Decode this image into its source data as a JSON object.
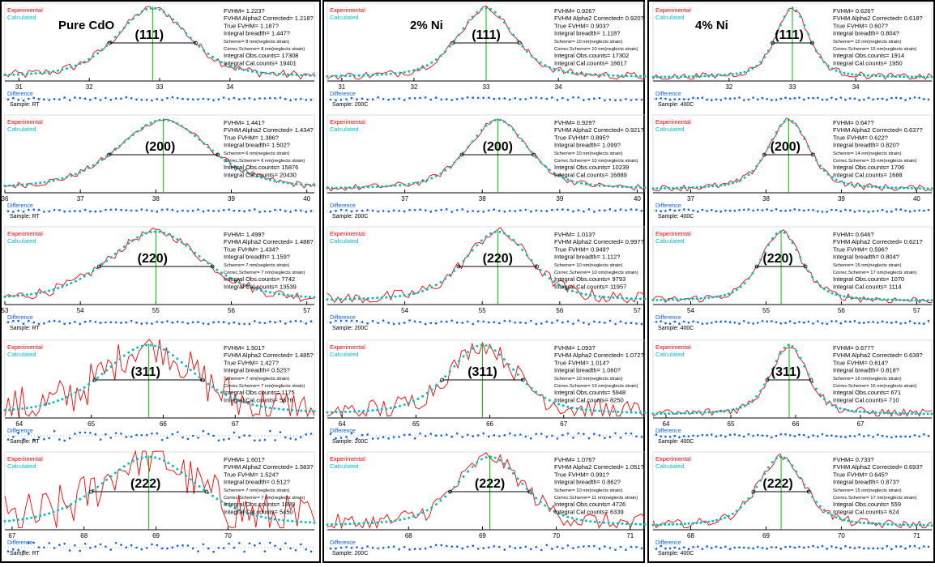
{
  "colors": {
    "experimental": "#ff0000",
    "calculated": "#00c0c0",
    "difference": "#1060e0",
    "peak_line": "#00c000",
    "fwhm_line": "#000000",
    "section_border": "#000000"
  },
  "legend": {
    "experimental": "Experimental",
    "calculated": "Calculated",
    "difference": "Difference"
  },
  "columns": [
    {
      "title": "Pure CdO",
      "sample_label": "Sample: RT"
    },
    {
      "title": "2% Ni",
      "sample_label": "Sample: 200C"
    },
    {
      "title": "4% Ni",
      "sample_label": "Sample: 400C"
    }
  ],
  "chart_data": [
    {
      "type": "line",
      "col": 0,
      "row": 0,
      "hkl": "(111)",
      "xlim": [
        30.8,
        35.2
      ],
      "xticks": [
        31,
        32,
        33,
        34
      ],
      "peak": 32.9,
      "fwhm": 1.223,
      "noise": 0.07,
      "info": [
        "FVHM= 1.223?",
        "FVHM Alpha2 Corrected= 1.218?",
        "True FVHM= 1.187?",
        "Integral breadth= 1.447?",
        "Scherrer= 8 nm(neglects strain)",
        "Correc.Scherrer= 8 nm(neglects strain)",
        "Integral Obs.counts= 17308",
        "Integral Cal.counts= 19401"
      ]
    },
    {
      "type": "line",
      "col": 0,
      "row": 1,
      "hkl": "(200)",
      "xlim": [
        36,
        40.1
      ],
      "xticks": [
        36,
        37,
        38,
        39,
        40
      ],
      "peak": 38.1,
      "fwhm": 1.441,
      "noise": 0.05,
      "info": [
        "FVHM= 1.441?",
        "FVHM Alpha2 Corrected= 1.434?",
        "True FVHM= 1.386?",
        "Integral breadth= 1.502?",
        "Scherrer= 6 nm(neglects strain)",
        "Correc.Scherrer= 6 nm(neglects strain)",
        "Integral Obs.counts= 15876",
        "Integral Cal.counts= 20430"
      ]
    },
    {
      "type": "line",
      "col": 0,
      "row": 2,
      "hkl": "(220)",
      "xlim": [
        53,
        57.1
      ],
      "xticks": [
        53,
        54,
        55,
        56,
        57
      ],
      "peak": 55.0,
      "fwhm": 1.499,
      "noise": 0.08,
      "info": [
        "FVHM= 1.499?",
        "FVHM Alpha2 Corrected= 1.488?",
        "True FVHM= 1.434?",
        "Integral breadth= 1.159?",
        "Scherrer= 7 nm(neglects strain)",
        "Correc.Scherrer= 7 nm(neglects strain)",
        "Integral Obs.counts= 7742",
        "Integral Cal.counts= 13539"
      ]
    },
    {
      "type": "line",
      "col": 0,
      "row": 3,
      "hkl": "(311)",
      "xlim": [
        63.8,
        68.1
      ],
      "xticks": [
        64,
        65,
        66,
        67
      ],
      "peak": 65.8,
      "fwhm": 1.501,
      "noise": 0.35,
      "info": [
        "FVHM= 1.501?",
        "FVHM Alpha2 Corrected= 1.485?",
        "True FVHM= 1.427?",
        "Integral breadth= 0.525?",
        "Scherrer= 7 nm(neglects strain)",
        "Correc.Scherrer= 7 nm(neglects strain)",
        "Integral Obs.counts= 1175",
        "Integral Cal.counts= 5676"
      ]
    },
    {
      "type": "line",
      "col": 0,
      "row": 4,
      "hkl": "(222)",
      "xlim": [
        66.9,
        71.2
      ],
      "xticks": [
        67,
        68,
        69,
        70
      ],
      "peak": 68.9,
      "fwhm": 1.601,
      "noise": 0.4,
      "info": [
        "FVHM= 1.601?",
        "FVHM Alpha2 Corrected= 1.583?",
        "True FVHM= 1.524?",
        "Integral breadth= 0.512?",
        "Scherrer= 7 nm(neglects strain)",
        "Correc.Scherrer= 7 nm(neglects strain)",
        "Integral Obs.counts= 1889",
        "Integral Cal.counts= 5450"
      ]
    },
    {
      "type": "line",
      "col": 1,
      "row": 0,
      "hkl": "(111)",
      "xlim": [
        30.8,
        35.2
      ],
      "xticks": [
        31,
        32,
        33,
        34
      ],
      "peak": 33.0,
      "fwhm": 0.926,
      "noise": 0.06,
      "info": [
        "FVHM= 0.926?",
        "FVHM Alpha2 Corrected= 0.920?",
        "True FVHM= 0.903?",
        "Integral breadth= 1.118?",
        "Scherrer= 10 nm(neglects strain)",
        "Correc.Scherrer= 10 nm(neglects strain)",
        "Integral Obs.counts= 17302",
        "Integral Cal.counts= 18617"
      ]
    },
    {
      "type": "line",
      "col": 1,
      "row": 1,
      "hkl": "(200)",
      "xlim": [
        36,
        40.1
      ],
      "xticks": [
        37,
        38,
        39,
        40
      ],
      "peak": 38.2,
      "fwhm": 0.929,
      "noise": 0.05,
      "info": [
        "FVHM= 0.929?",
        "FVHM Alpha2 Corrected= 0.921?",
        "True FVHM= 0.895?",
        "Integral breadth= 1.099?",
        "Scherrer= 10 nm(neglects strain)",
        "Correc.Scherrer= 10 nm(neglects strain)",
        "Integral Obs.counts= 10239",
        "Integral Cal.counts= 16889"
      ]
    },
    {
      "type": "line",
      "col": 1,
      "row": 2,
      "hkl": "(220)",
      "xlim": [
        53,
        57.1
      ],
      "xticks": [
        54,
        55,
        56,
        57
      ],
      "peak": 55.2,
      "fwhm": 1.013,
      "noise": 0.1,
      "info": [
        "FVHM= 1.013?",
        "FVHM Alpha2 Corrected= 0.997?",
        "True FVHM= 0.949?",
        "Integral breadth= 1.112?",
        "Scherrer= 10 nm(neglects strain)",
        "Correc.Scherrer= 10 nm(neglects strain)",
        "Integral Obs.counts= 9793",
        "Integral Cal.counts= 11957"
      ]
    },
    {
      "type": "line",
      "col": 1,
      "row": 3,
      "hkl": "(311)",
      "xlim": [
        63.8,
        68.1
      ],
      "xticks": [
        64,
        65,
        66,
        67
      ],
      "peak": 65.9,
      "fwhm": 1.093,
      "noise": 0.18,
      "info": [
        "FVHM= 1.093?",
        "FVHM Alpha2 Corrected= 1.072?",
        "True FVHM= 1.014?",
        "Integral breadth= 1.060?",
        "Scherrer= 10 nm(neglects strain)",
        "Correc.Scherrer= 10 nm(neglects strain)",
        "Integral Obs.counts= 5948",
        "Integral Cal.counts= 8250"
      ]
    },
    {
      "type": "line",
      "col": 1,
      "row": 4,
      "hkl": "(222)",
      "xlim": [
        66.9,
        71.2
      ],
      "xticks": [
        68,
        69,
        70,
        71
      ],
      "peak": 69.1,
      "fwhm": 1.076,
      "noise": 0.15,
      "info": [
        "FVHM= 1.076?",
        "FVHM Alpha2 Corrected= 1.051?",
        "True FVHM= 0.991?",
        "Integral breadth= 0.862?",
        "Scherrer= 10 nm(neglects strain)",
        "Correc.Scherrer= 11 nm(neglects strain)",
        "Integral Obs.counts= 4726",
        "Integral Cal.counts= 6339"
      ]
    },
    {
      "type": "line",
      "col": 2,
      "row": 0,
      "hkl": "(111)",
      "xlim": [
        30.8,
        35.2
      ],
      "xticks": [
        32,
        33,
        34
      ],
      "peak": 33.0,
      "fwhm": 0.626,
      "noise": 0.05,
      "info": [
        "FVHM= 0.626?",
        "FVHM Alpha2 Corrected= 0.618?",
        "True FVHM= 0.607?",
        "Integral breadth= 0.804?",
        "Scherrer= 15 nm(neglects strain)",
        "Correc.Scherrer= 15 nm(neglects strain)",
        "Integral Obs.counts= 1914",
        "Integral Cal.counts= 1950"
      ]
    },
    {
      "type": "line",
      "col": 2,
      "row": 1,
      "hkl": "(200)",
      "xlim": [
        36.5,
        40.2
      ],
      "xticks": [
        37,
        38,
        39,
        40
      ],
      "peak": 38.3,
      "fwhm": 0.647,
      "noise": 0.05,
      "info": [
        "FVHM= 0.647?",
        "FVHM Alpha2 Corrected= 0.637?",
        "True FVHM= 0.622?",
        "Integral breadth= 0.820?",
        "Scherrer= 14 nm(neglects strain)",
        "Correc.Scherrer= 15 nm(neglects strain)",
        "Integral Obs.counts= 1706",
        "Integral Cal.counts= 1688"
      ]
    },
    {
      "type": "line",
      "col": 2,
      "row": 2,
      "hkl": "(220)",
      "xlim": [
        53.5,
        57.2
      ],
      "xticks": [
        54,
        55,
        56,
        57
      ],
      "peak": 55.2,
      "fwhm": 0.646,
      "noise": 0.06,
      "info": [
        "FVHM= 0.646?",
        "FVHM Alpha2 Corrected= 0.621?",
        "True FVHM= 0.596?",
        "Integral breadth= 0.804?",
        "Scherrer= 15 nm(neglects strain)",
        "Correc.Scherrer= 17 nm(neglects strain)",
        "Integral Obs.counts= 1070",
        "Integral Cal.counts= 1114"
      ]
    },
    {
      "type": "line",
      "col": 2,
      "row": 3,
      "hkl": "(311)",
      "xlim": [
        63.8,
        68.1
      ],
      "xticks": [
        64,
        65,
        66,
        67
      ],
      "peak": 65.9,
      "fwhm": 0.677,
      "noise": 0.07,
      "info": [
        "FVHM= 0.677?",
        "FVHM Alpha2 Corrected= 0.639?",
        "True FVHM= 0.614?",
        "Integral breadth= 0.818?",
        "Scherrer= 16 nm(neglects strain)",
        "Correc.Scherrer= 16 nm(neglects strain)",
        "Integral Obs.counts= 671",
        "Integral Cal.counts= 710"
      ]
    },
    {
      "type": "line",
      "col": 2,
      "row": 4,
      "hkl": "(222)",
      "xlim": [
        67.5,
        71.2
      ],
      "xticks": [
        68,
        69,
        70,
        71
      ],
      "peak": 69.2,
      "fwhm": 0.733,
      "noise": 0.07,
      "info": [
        "FVHM= 0.733?",
        "FVHM Alpha2 Corrected= 0.693?",
        "True FVHM= 0.645?",
        "Integral breadth= 0.873?",
        "Scherrer= 15 nm(neglects strain)",
        "Correc.Scherrer= 17 nm(neglects strain)",
        "Integral Obs.counts= 559",
        "Integral Cal.counts= 624"
      ]
    }
  ]
}
